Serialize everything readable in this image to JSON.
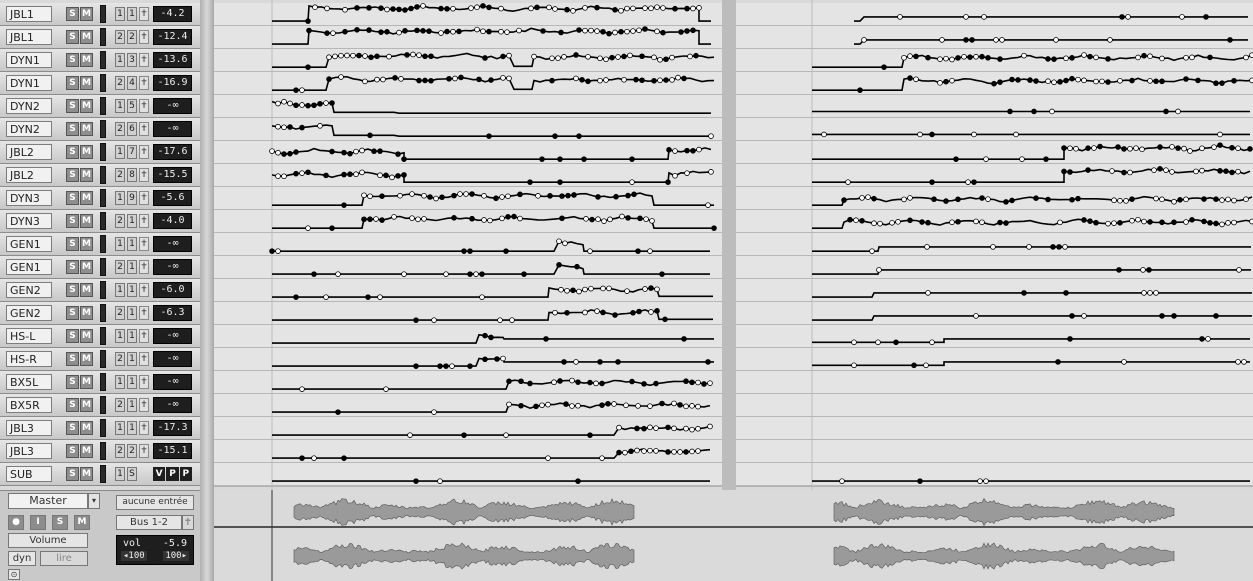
{
  "tracks": [
    {
      "name": "JBL1",
      "s": "S",
      "m": "M",
      "in": "1",
      "out": "1",
      "vol": "-4.2",
      "env": "A"
    },
    {
      "name": "JBL1",
      "s": "S",
      "m": "M",
      "in": "2",
      "out": "2",
      "vol": "-12.4",
      "env": "A"
    },
    {
      "name": "DYN1",
      "s": "S",
      "m": "M",
      "in": "1",
      "out": "3",
      "vol": "-13.6",
      "env": "B"
    },
    {
      "name": "DYN1",
      "s": "S",
      "m": "M",
      "in": "2",
      "out": "4",
      "vol": "-16.9",
      "env": "B"
    },
    {
      "name": "DYN2",
      "s": "S",
      "m": "M",
      "in": "1",
      "out": "5",
      "vol": "-∞",
      "env": "C"
    },
    {
      "name": "DYN2",
      "s": "S",
      "m": "M",
      "in": "2",
      "out": "6",
      "vol": "-∞",
      "env": "C"
    },
    {
      "name": "JBL2",
      "s": "S",
      "m": "M",
      "in": "1",
      "out": "7",
      "vol": "-17.6",
      "env": "D"
    },
    {
      "name": "JBL2",
      "s": "S",
      "m": "M",
      "in": "2",
      "out": "8",
      "vol": "-15.5",
      "env": "D"
    },
    {
      "name": "DYN3",
      "s": "S",
      "m": "M",
      "in": "1",
      "out": "9",
      "vol": "-5.6",
      "env": "E"
    },
    {
      "name": "DYN3",
      "s": "S",
      "m": "M",
      "in": "2",
      "out": "1",
      "vol": "-4.0",
      "env": "E"
    },
    {
      "name": "GEN1",
      "s": "S",
      "m": "M",
      "in": "1",
      "out": "1",
      "vol": "-∞",
      "env": "F"
    },
    {
      "name": "GEN1",
      "s": "S",
      "m": "M",
      "in": "2",
      "out": "1",
      "vol": "-∞",
      "env": "F"
    },
    {
      "name": "GEN2",
      "s": "S",
      "m": "M",
      "in": "1",
      "out": "1",
      "vol": "-6.0",
      "env": "G"
    },
    {
      "name": "GEN2",
      "s": "S",
      "m": "M",
      "in": "2",
      "out": "1",
      "vol": "-6.3",
      "env": "G"
    },
    {
      "name": "HS-L",
      "s": "S",
      "m": "M",
      "in": "1",
      "out": "1",
      "vol": "-∞",
      "env": "H"
    },
    {
      "name": "HS-R",
      "s": "S",
      "m": "M",
      "in": "2",
      "out": "1",
      "vol": "-∞",
      "env": "H"
    },
    {
      "name": "BX5L",
      "s": "S",
      "m": "M",
      "in": "1",
      "out": "1",
      "vol": "-∞",
      "env": "I"
    },
    {
      "name": "BX5R",
      "s": "S",
      "m": "M",
      "in": "2",
      "out": "1",
      "vol": "-∞",
      "env": "I"
    },
    {
      "name": "JBL3",
      "s": "S",
      "m": "M",
      "in": "1",
      "out": "1",
      "vol": "-17.3",
      "env": "J"
    },
    {
      "name": "JBL3",
      "s": "S",
      "m": "M",
      "in": "2",
      "out": "2",
      "vol": "-15.1",
      "env": "J"
    },
    {
      "name": "SUB",
      "s": "S",
      "m": "M",
      "in": "1",
      "out": "S",
      "vol": "",
      "env": "K",
      "vpp": [
        "V",
        "P",
        "P"
      ]
    }
  ],
  "master": {
    "name": "Master",
    "buttons": [
      "",
      "I",
      "S",
      "M"
    ],
    "automation": "Volume",
    "mode": "dyn",
    "read": "lire",
    "input": "aucune entrée",
    "output": "Bus 1-2",
    "vol_label": "vol",
    "vol_value": "-5.9",
    "pan_left": "◂100",
    "pan_right": "100▸"
  },
  "colors": {
    "envelope": "#000000",
    "lane_bg": "#e4e4e4",
    "lane_line": "#8a8a8a",
    "waveform": "#9a9a9a"
  }
}
